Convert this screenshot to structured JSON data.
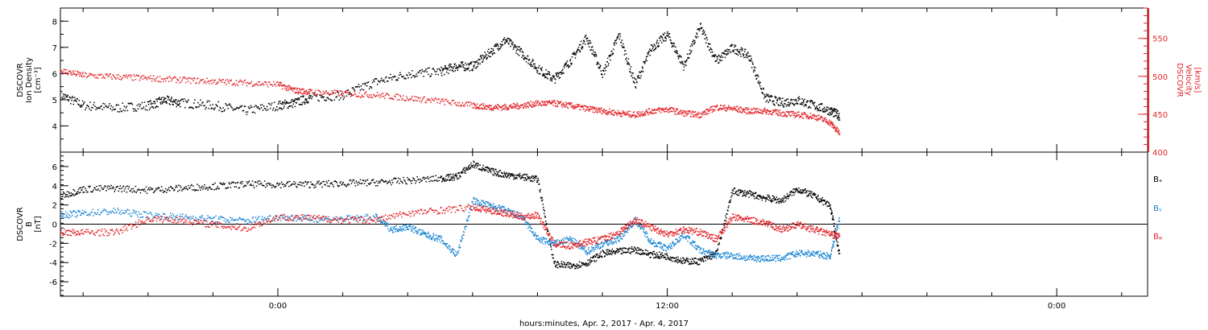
{
  "xaxis": {
    "title": "hours:minutes, Apr.  2, 2017 - Apr.  4, 2017",
    "ticks": [
      "0:00",
      "12:00",
      "0:00"
    ]
  },
  "chart_data": [
    {
      "type": "scatter",
      "panel": "top",
      "ylabel": [
        "DSCOVR",
        "Ion Density",
        "[cm⁻³]"
      ],
      "ylim": [
        3.0,
        8.5
      ],
      "yticks": [
        4,
        5,
        6,
        7,
        8
      ],
      "y2label": [
        "DSCOVR",
        "Velocity",
        "[km/s]"
      ],
      "y2lim": [
        400,
        590
      ],
      "y2ticks": [
        400,
        450,
        500,
        550
      ],
      "xunit": "hours from 2017-04-02 00:00",
      "series": [
        {
          "name": "",
          "axis": "left",
          "color": "#000000",
          "x": [
            -6.7,
            -6,
            -5,
            -4,
            -3.5,
            -3,
            -2,
            -1,
            0,
            0.5,
            1,
            2,
            3,
            4,
            5,
            5.5,
            6,
            6.5,
            7,
            7.5,
            8,
            8.5,
            9,
            9.5,
            10,
            10.5,
            11,
            11.5,
            12,
            12.5,
            13,
            13.5,
            14,
            14.5,
            15,
            15.5,
            16,
            16.5,
            17,
            17.3
          ],
          "y": [
            5.2,
            4.8,
            4.7,
            4.8,
            5.0,
            4.9,
            4.8,
            4.6,
            4.8,
            4.9,
            5.1,
            5.2,
            5.7,
            6.0,
            6.1,
            6.3,
            6.3,
            6.8,
            7.3,
            6.8,
            6.2,
            5.8,
            6.5,
            7.4,
            6.0,
            7.5,
            5.6,
            7.0,
            7.5,
            6.3,
            7.8,
            6.5,
            7.0,
            6.7,
            5.1,
            4.9,
            5.0,
            4.8,
            4.6,
            4.4
          ]
        },
        {
          "name": "",
          "axis": "right",
          "color": "#e3262b",
          "x": [
            -6.7,
            -6,
            -5,
            -4,
            -3,
            -2,
            -1,
            0,
            0.5,
            1,
            2,
            3,
            4,
            5,
            6,
            6.5,
            7,
            7.5,
            8,
            8.5,
            9,
            9.5,
            10,
            10.5,
            11,
            11.5,
            12,
            12.5,
            13,
            13.5,
            14,
            14.5,
            15,
            15.5,
            16,
            16.5,
            17,
            17.3
          ],
          "y": [
            508,
            502,
            500,
            498,
            496,
            494,
            492,
            490,
            482,
            480,
            478,
            476,
            472,
            468,
            462,
            460,
            460,
            462,
            465,
            465,
            462,
            458,
            455,
            452,
            450,
            455,
            457,
            452,
            450,
            460,
            458,
            455,
            455,
            452,
            450,
            448,
            440,
            425
          ]
        }
      ]
    },
    {
      "type": "scatter",
      "panel": "bottom",
      "ylabel": [
        "DSCOVR",
        "B",
        "[nT]"
      ],
      "ylim": [
        -7.5,
        7.5
      ],
      "yticks": [
        -6,
        -4,
        -2,
        0,
        2,
        4,
        6
      ],
      "zero_line": true,
      "xunit": "hours from 2017-04-02 00:00",
      "series": [
        {
          "name": "Bₓ",
          "color": "#000000",
          "x": [
            -6.7,
            -6,
            -5,
            -4,
            -3,
            -2,
            -1,
            0,
            1,
            2,
            3,
            4,
            5,
            5.5,
            6,
            6.5,
            7,
            7.5,
            8,
            8.5,
            9,
            9.5,
            10,
            10.5,
            11,
            11.5,
            12,
            12.5,
            13,
            13.5,
            14,
            14.5,
            15,
            15.5,
            16,
            16.5,
            17,
            17.3
          ],
          "y": [
            3.0,
            3.7,
            3.8,
            3.6,
            3.8,
            4.0,
            4.2,
            4.2,
            4.2,
            4.3,
            4.4,
            4.6,
            4.8,
            5.0,
            6.3,
            5.6,
            5.2,
            5.0,
            4.7,
            -4.1,
            -4.3,
            -4.0,
            -3.0,
            -2.8,
            -2.6,
            -3.1,
            -3.3,
            -3.8,
            -3.8,
            -3.0,
            3.5,
            3.2,
            2.8,
            2.5,
            3.7,
            3.0,
            2.0,
            -3.2
          ]
        },
        {
          "name": "Bᵧ",
          "color": "#1b86d4",
          "x": [
            -6.7,
            -6,
            -5,
            -4,
            -3,
            -2,
            -1,
            0,
            1,
            2,
            3,
            3.5,
            4,
            4.5,
            5,
            5.5,
            6,
            6.5,
            7,
            7.5,
            8,
            8.5,
            9,
            9.5,
            10,
            10.5,
            11,
            11.5,
            12,
            12.5,
            13,
            13.5,
            14,
            14.5,
            15,
            15.5,
            16,
            16.5,
            17,
            17.3
          ],
          "y": [
            1.0,
            1.2,
            1.4,
            1.0,
            0.8,
            0.6,
            0.4,
            0.8,
            0.6,
            0.6,
            0.8,
            -0.5,
            -0.2,
            -1.0,
            -1.5,
            -3.2,
            2.5,
            2.0,
            1.5,
            0.8,
            -1.5,
            -2.0,
            -1.5,
            -2.8,
            -2.0,
            -1.5,
            0.5,
            -1.8,
            -2.5,
            -1.0,
            -2.7,
            -3.2,
            -3.2,
            -3.5,
            -3.5,
            -3.5,
            -3.0,
            -3.0,
            -3.3,
            0.8
          ]
        },
        {
          "name": "Bᵩ",
          "color": "#e3262b",
          "x": [
            -6.7,
            -6,
            -5,
            -4,
            -3,
            -2,
            -1,
            0,
            1,
            2,
            3,
            4,
            5,
            6,
            6.5,
            7,
            7.5,
            8,
            8.5,
            9,
            9.5,
            10,
            10.5,
            11,
            11.5,
            12,
            12.5,
            13,
            13.5,
            14,
            14.5,
            15,
            15.5,
            16,
            16.5,
            17,
            17.3
          ],
          "y": [
            -0.8,
            -0.8,
            -0.8,
            0.6,
            0.5,
            0.0,
            -0.4,
            0.8,
            0.7,
            0.5,
            0.5,
            1.2,
            1.5,
            1.8,
            1.5,
            1.2,
            0.8,
            1.0,
            -2.0,
            -2.2,
            -1.8,
            -1.5,
            -0.8,
            0.5,
            -0.3,
            -1.0,
            -0.5,
            -0.8,
            -1.5,
            0.8,
            0.5,
            0.2,
            -0.5,
            0.0,
            -0.5,
            -1.0,
            -1.2
          ]
        }
      ]
    }
  ]
}
